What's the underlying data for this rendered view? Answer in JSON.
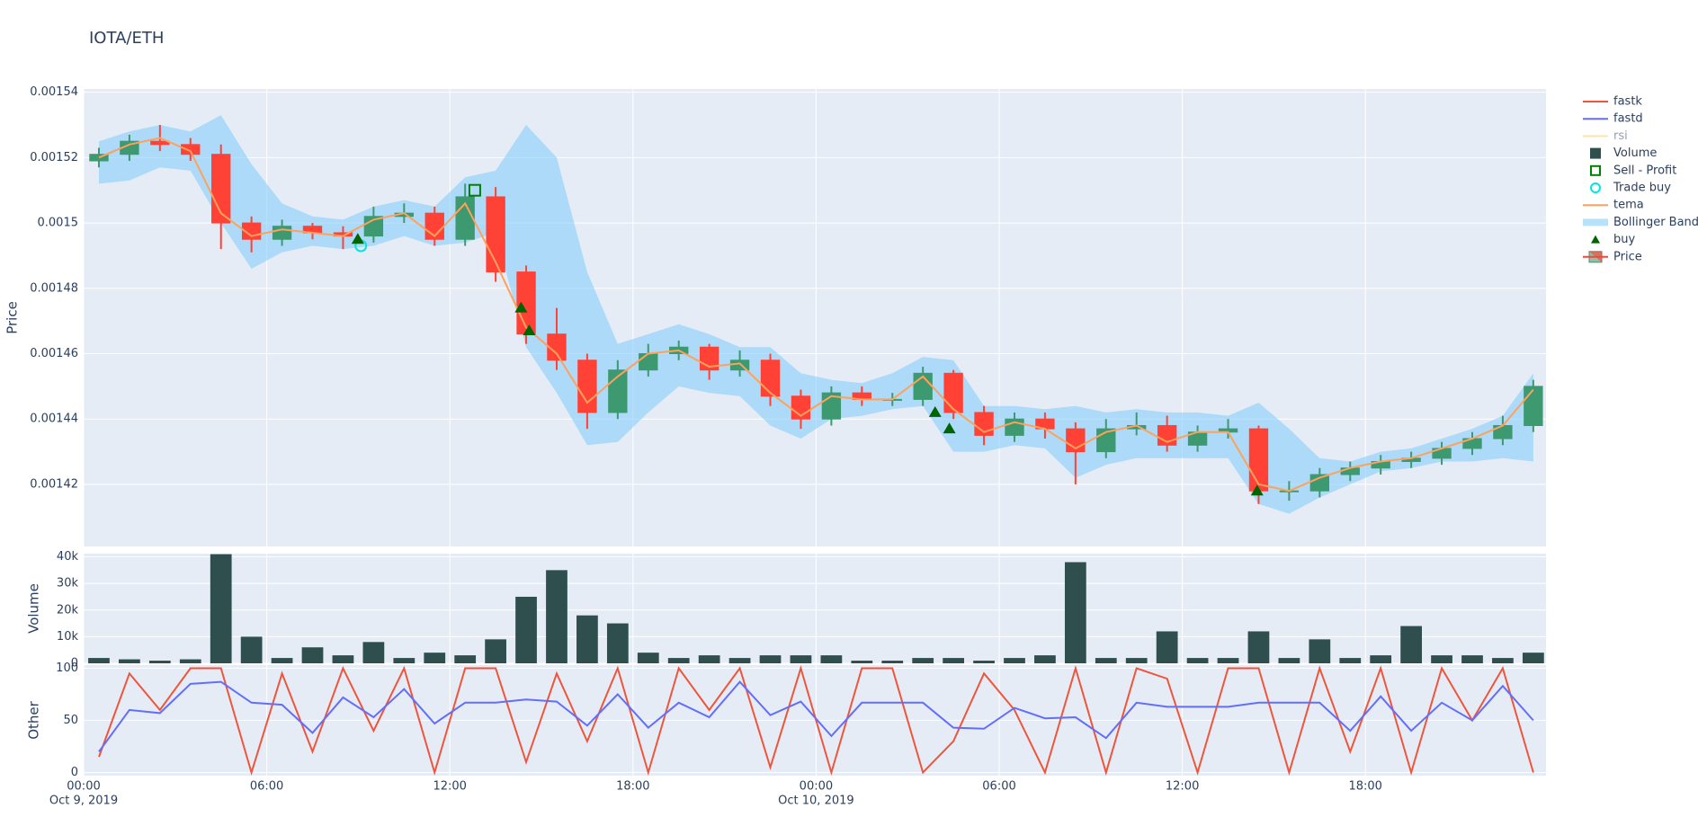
{
  "chart_data": [
    {
      "type": "candlestick",
      "title": "IOTA/ETH",
      "ylabel": "Price",
      "ylim": [
        0.001401,
        0.001541
      ],
      "yticks": [
        0.00142,
        0.00144,
        0.00146,
        0.00148,
        0.0015,
        0.00152,
        0.00154
      ],
      "grid": true,
      "x": [
        "2019-10-09T00:30",
        "2019-10-09T01:30",
        "2019-10-09T02:30",
        "2019-10-09T03:30",
        "2019-10-09T04:30",
        "2019-10-09T05:30",
        "2019-10-09T06:30",
        "2019-10-09T07:30",
        "2019-10-09T08:30",
        "2019-10-09T09:30",
        "2019-10-09T10:30",
        "2019-10-09T11:30",
        "2019-10-09T12:30",
        "2019-10-09T13:30",
        "2019-10-09T14:30",
        "2019-10-09T15:30",
        "2019-10-09T16:30",
        "2019-10-09T17:30",
        "2019-10-09T18:30",
        "2019-10-09T19:30",
        "2019-10-09T20:30",
        "2019-10-09T21:30",
        "2019-10-09T22:30",
        "2019-10-09T23:30",
        "2019-10-10T00:30",
        "2019-10-10T01:30",
        "2019-10-10T02:30",
        "2019-10-10T03:30",
        "2019-10-10T04:30",
        "2019-10-10T05:30",
        "2019-10-10T06:30",
        "2019-10-10T07:30",
        "2019-10-10T08:30",
        "2019-10-10T09:30",
        "2019-10-10T10:30",
        "2019-10-10T11:30",
        "2019-10-10T12:30",
        "2019-10-10T13:30",
        "2019-10-10T14:30",
        "2019-10-10T15:30",
        "2019-10-10T16:30",
        "2019-10-10T17:30",
        "2019-10-10T18:30",
        "2019-10-10T19:30",
        "2019-10-10T20:30",
        "2019-10-10T21:30",
        "2019-10-10T22:30",
        "2019-10-10T23:30"
      ],
      "series": [
        {
          "name": "Sell - Profit",
          "kind": "marker",
          "symbol": "square-open",
          "color": "#008000",
          "x": [
            "2019-10-09T12:49"
          ],
          "values": [
            0.00151
          ]
        },
        {
          "name": "Trade buy",
          "kind": "marker",
          "symbol": "circle-open",
          "color": "#00e5e5",
          "x": [
            "2019-10-09T09:05"
          ],
          "values": [
            0.001493
          ]
        },
        {
          "name": "tema",
          "kind": "line",
          "color": "#ffa15a",
          "values": [
            0.00152,
            0.001524,
            0.001526,
            0.001522,
            0.001503,
            0.001496,
            0.001498,
            0.001497,
            0.001496,
            0.001501,
            0.001503,
            0.001496,
            0.001506,
            0.001488,
            0.001468,
            0.00146,
            0.001445,
            0.001453,
            0.00146,
            0.001461,
            0.001456,
            0.001457,
            0.001448,
            0.001441,
            0.001447,
            0.001446,
            0.001446,
            0.001453,
            0.001443,
            0.001436,
            0.001439,
            0.001437,
            0.001431,
            0.001436,
            0.001438,
            0.001433,
            0.001436,
            0.001436,
            0.00142,
            0.001418,
            0.001422,
            0.001425,
            0.001427,
            0.001428,
            0.001431,
            0.001434,
            0.001438,
            0.001449
          ]
        },
        {
          "name": "Bollinger Band",
          "kind": "band",
          "color": "rgba(135,206,250,0.6)",
          "upper": [
            0.001525,
            0.001528,
            0.00153,
            0.001528,
            0.001533,
            0.001518,
            0.001506,
            0.001502,
            0.001501,
            0.001505,
            0.001507,
            0.001505,
            0.001514,
            0.001516,
            0.00153,
            0.00152,
            0.001485,
            0.001463,
            0.001466,
            0.001469,
            0.001466,
            0.001462,
            0.001462,
            0.001454,
            0.001452,
            0.001451,
            0.001454,
            0.001459,
            0.001458,
            0.001444,
            0.001444,
            0.001443,
            0.001444,
            0.001442,
            0.001443,
            0.001442,
            0.001442,
            0.001441,
            0.001445,
            0.001437,
            0.001428,
            0.001427,
            0.00143,
            0.001431,
            0.001434,
            0.001437,
            0.001441,
            0.001454
          ],
          "lower": [
            0.001512,
            0.001513,
            0.001517,
            0.001516,
            0.0015,
            0.001486,
            0.001491,
            0.001493,
            0.001492,
            0.001493,
            0.001496,
            0.001493,
            0.001494,
            0.001497,
            0.001462,
            0.001448,
            0.001432,
            0.001433,
            0.001442,
            0.00145,
            0.001448,
            0.001447,
            0.001438,
            0.001434,
            0.00144,
            0.001441,
            0.001443,
            0.001444,
            0.00143,
            0.00143,
            0.001432,
            0.001431,
            0.001422,
            0.001426,
            0.001428,
            0.001428,
            0.001428,
            0.001428,
            0.001414,
            0.001411,
            0.001416,
            0.00142,
            0.001424,
            0.001425,
            0.001427,
            0.001427,
            0.001428,
            0.001427
          ]
        },
        {
          "name": "buy",
          "kind": "marker",
          "symbol": "triangle-up",
          "color": "#006400",
          "x": [
            "2019-10-09T08:59",
            "2019-10-09T14:20",
            "2019-10-09T14:36",
            "2019-10-10T03:54",
            "2019-10-10T04:22",
            "2019-10-10T14:27"
          ],
          "values": [
            0.001495,
            0.001474,
            0.001467,
            0.001442,
            0.001437,
            0.001418
          ]
        },
        {
          "name": "Price",
          "kind": "candlestick",
          "increasing_color": "#3d9970",
          "decreasing_color": "#ff4136",
          "open": [
            0.001519,
            0.001521,
            0.001525,
            0.001524,
            0.001521,
            0.0015,
            0.001495,
            0.001499,
            0.001497,
            0.001496,
            0.001502,
            0.001503,
            0.001495,
            0.001508,
            0.001485,
            0.001466,
            0.001458,
            0.001442,
            0.001455,
            0.00146,
            0.001462,
            0.001455,
            0.001458,
            0.001447,
            0.00144,
            0.001448,
            0.001446,
            0.001446,
            0.001454,
            0.001442,
            0.001435,
            0.00144,
            0.001437,
            0.00143,
            0.001437,
            0.001438,
            0.001432,
            0.001436,
            0.001437,
            0.001418,
            0.001418,
            0.001423,
            0.001425,
            0.001427,
            0.001428,
            0.001431,
            0.001434,
            0.001438
          ],
          "high": [
            0.001523,
            0.001527,
            0.00153,
            0.001526,
            0.001524,
            0.001502,
            0.001501,
            0.0015,
            0.001499,
            0.001505,
            0.001506,
            0.001505,
            0.001512,
            0.001511,
            0.001487,
            0.001474,
            0.00146,
            0.001458,
            0.001463,
            0.001464,
            0.001463,
            0.001461,
            0.00146,
            0.001449,
            0.00145,
            0.00145,
            0.001448,
            0.001456,
            0.001455,
            0.001444,
            0.001442,
            0.001442,
            0.001439,
            0.00144,
            0.001442,
            0.001441,
            0.001438,
            0.00144,
            0.001438,
            0.001421,
            0.001425,
            0.001427,
            0.001429,
            0.00143,
            0.001433,
            0.001436,
            0.001441,
            0.001452
          ],
          "low": [
            0.001517,
            0.001519,
            0.001522,
            0.001519,
            0.001492,
            0.001491,
            0.001493,
            0.001495,
            0.001492,
            0.001494,
            0.0015,
            0.001493,
            0.001493,
            0.001482,
            0.001463,
            0.001455,
            0.001437,
            0.00144,
            0.001453,
            0.001458,
            0.001452,
            0.001453,
            0.001444,
            0.001437,
            0.001438,
            0.001444,
            0.001444,
            0.001444,
            0.00144,
            0.001432,
            0.001433,
            0.001434,
            0.00142,
            0.001428,
            0.001435,
            0.00143,
            0.00143,
            0.001434,
            0.001414,
            0.001415,
            0.001416,
            0.001421,
            0.001423,
            0.001425,
            0.001426,
            0.001429,
            0.001432,
            0.001436
          ],
          "close": [
            0.001521,
            0.001525,
            0.001524,
            0.001521,
            0.0015,
            0.001495,
            0.001499,
            0.001497,
            0.001496,
            0.001502,
            0.001503,
            0.001495,
            0.001508,
            0.001485,
            0.001466,
            0.001458,
            0.001442,
            0.001455,
            0.00146,
            0.001462,
            0.001455,
            0.001458,
            0.001447,
            0.00144,
            0.001448,
            0.001446,
            0.001446,
            0.001454,
            0.001442,
            0.001435,
            0.00144,
            0.001437,
            0.00143,
            0.001437,
            0.001438,
            0.001432,
            0.001436,
            0.001437,
            0.001418,
            0.001418,
            0.001423,
            0.001425,
            0.001427,
            0.001428,
            0.001431,
            0.001434,
            0.001438,
            0.00145
          ]
        }
      ]
    },
    {
      "type": "bar",
      "ylabel": "Volume",
      "ylim": [
        0,
        41200
      ],
      "yticks": [
        0,
        {
          "value": 10000,
          "label": "10k"
        },
        {
          "value": 20000,
          "label": "20k"
        },
        {
          "value": 30000,
          "label": "30k"
        },
        {
          "value": 40000,
          "label": "40k"
        }
      ],
      "grid": true,
      "series": [
        {
          "name": "Volume",
          "kind": "bar",
          "color": "#2f4f4f",
          "values": [
            2000,
            1500,
            1000,
            1500,
            41000,
            10000,
            2000,
            6000,
            3000,
            8000,
            2000,
            4000,
            3000,
            9000,
            25000,
            35000,
            18000,
            15000,
            4000,
            2000,
            3000,
            2000,
            3000,
            3000,
            3000,
            1000,
            1000,
            2000,
            2000,
            1000,
            2000,
            3000,
            38000,
            2000,
            2000,
            12000,
            2000,
            2000,
            12000,
            2000,
            9000,
            2000,
            3000,
            14000,
            3000,
            3000,
            2000,
            4000
          ]
        }
      ]
    },
    {
      "type": "line",
      "ylabel": "Other",
      "ylim": [
        -3,
        103
      ],
      "yticks": [
        0,
        50,
        100
      ],
      "grid": true,
      "xlim": [
        "2019-10-09T00:00",
        "2019-10-10T23:55"
      ],
      "xticks": [
        {
          "value": "2019-10-09T00:00",
          "label": "00:00",
          "sublabel": "Oct 9, 2019"
        },
        {
          "value": "2019-10-09T06:00",
          "label": "06:00"
        },
        {
          "value": "2019-10-09T12:00",
          "label": "12:00"
        },
        {
          "value": "2019-10-09T18:00",
          "label": "18:00"
        },
        {
          "value": "2019-10-10T00:00",
          "label": "00:00",
          "sublabel": "Oct 10, 2019"
        },
        {
          "value": "2019-10-10T06:00",
          "label": "06:00"
        },
        {
          "value": "2019-10-10T12:00",
          "label": "12:00"
        },
        {
          "value": "2019-10-10T18:00",
          "label": "18:00"
        }
      ],
      "series": [
        {
          "name": "fastk",
          "kind": "line",
          "color": "#ef553b",
          "values": [
            15,
            95,
            60,
            100,
            100,
            0,
            95,
            20,
            100,
            40,
            100,
            0,
            100,
            100,
            10,
            95,
            30,
            100,
            0,
            100,
            60,
            100,
            5,
            100,
            0,
            100,
            100,
            0,
            30,
            95,
            60,
            0,
            100,
            0,
            100,
            90,
            0,
            100,
            100,
            0,
            100,
            20,
            100,
            0,
            100,
            50,
            100,
            0
          ]
        },
        {
          "name": "fastd",
          "kind": "line",
          "color": "#636efa",
          "values": [
            20,
            60,
            57,
            85,
            87,
            67,
            65,
            38,
            72,
            53,
            80,
            47,
            67,
            67,
            70,
            68,
            45,
            75,
            43,
            67,
            53,
            87,
            55,
            68,
            35,
            67,
            67,
            67,
            43,
            42,
            62,
            52,
            53,
            33,
            67,
            63,
            63,
            63,
            67,
            67,
            67,
            40,
            73,
            40,
            67,
            50,
            83,
            50
          ]
        },
        {
          "name": "rsi",
          "kind": "line",
          "color": "#fecb52",
          "visible": false
        }
      ]
    }
  ]
}
